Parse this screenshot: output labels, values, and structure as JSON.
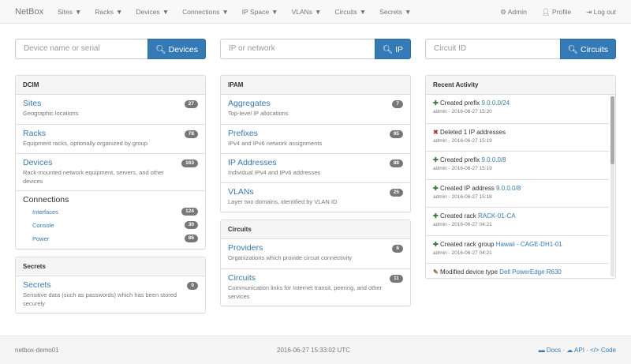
{
  "navbar": {
    "brand": "NetBox",
    "menus": [
      "Sites",
      "Racks",
      "Devices",
      "Connections",
      "IP Space",
      "VLANs",
      "Circuits",
      "Secrets"
    ],
    "admin": "Admin",
    "profile": "Profile",
    "logout": "Log out"
  },
  "search": [
    {
      "placeholder": "Device name or serial",
      "button": "Devices"
    },
    {
      "placeholder": "IP or network",
      "button": "IP"
    },
    {
      "placeholder": "Circuit ID",
      "button": "Circuits"
    }
  ],
  "dcim": {
    "title": "DCIM",
    "items": [
      {
        "label": "Sites",
        "desc": "Geographic locations",
        "count": "27"
      },
      {
        "label": "Racks",
        "desc": "Equipment racks, optionally organized by group",
        "count": "78"
      },
      {
        "label": "Devices",
        "desc": "Rack-mounted network equipment, servers, and other devices",
        "count": "163"
      }
    ],
    "connections": {
      "label": "Connections",
      "items": [
        {
          "label": "Interfaces",
          "count": "124"
        },
        {
          "label": "Console",
          "count": "30"
        },
        {
          "label": "Power",
          "count": "86"
        }
      ]
    }
  },
  "secrets": {
    "title": "Secrets",
    "items": [
      {
        "label": "Secrets",
        "desc": "Sensitive data (such as passwords) which has been stored securely",
        "count": "0"
      }
    ]
  },
  "ipam": {
    "title": "IPAM",
    "items": [
      {
        "label": "Aggregates",
        "desc": "Top-level IP allocations",
        "count": "7"
      },
      {
        "label": "Prefixes",
        "desc": "IPv4 and IPv6 network assignments",
        "count": "95"
      },
      {
        "label": "IP Addresses",
        "desc": "Individual IPv4 and IPv6 addresses",
        "count": "88"
      },
      {
        "label": "VLANs",
        "desc": "Layer two domains, identified by VLAN ID",
        "count": "25"
      }
    ]
  },
  "circuits": {
    "title": "Circuits",
    "items": [
      {
        "label": "Providers",
        "desc": "Organizations which provide circuit connectivity",
        "count": "6"
      },
      {
        "label": "Circuits",
        "desc": "Communication links for Internet transit, peering, and other services",
        "count": "11"
      }
    ]
  },
  "activity": {
    "title": "Recent Activity",
    "items": [
      {
        "icon": "plus-icon",
        "action": "Created prefix",
        "link": "9.0.0.0/24",
        "meta": "admin - 2016-06-27 15:20"
      },
      {
        "icon": "x-icon",
        "action": "Deleted 1 IP addresses",
        "link": "",
        "meta": "admin - 2016-06-27 15:19"
      },
      {
        "icon": "plus-icon",
        "action": "Created prefix",
        "link": "9.0.0.0/8",
        "meta": "admin - 2016-06-27 15:19"
      },
      {
        "icon": "plus-icon",
        "action": "Created IP address",
        "link": "9.0.0.0/8",
        "meta": "admin - 2016-06-27 15:18"
      },
      {
        "icon": "plus-icon",
        "action": "Created rack",
        "link": "RACK-01-CA",
        "meta": "admin - 2016-06-27 04:21"
      },
      {
        "icon": "plus-icon",
        "action": "Created rack group",
        "link": "Hawaii - CAGE-DH1-01",
        "meta": "admin - 2016-06-27 04:21"
      },
      {
        "icon": "pencil-icon",
        "action": "Modified device type",
        "link": "Dell PowerEdge R630",
        "meta": ""
      }
    ]
  },
  "colors": {
    "plus": "#3c763d",
    "x": "#a94442",
    "pencil": "#8a6d3b",
    "primary": "#337ab7"
  },
  "footer": {
    "host": "netbox-demo01",
    "time": "2016-06-27 15:33:02 UTC",
    "docs": "Docs",
    "api": "API",
    "code": "Code"
  }
}
